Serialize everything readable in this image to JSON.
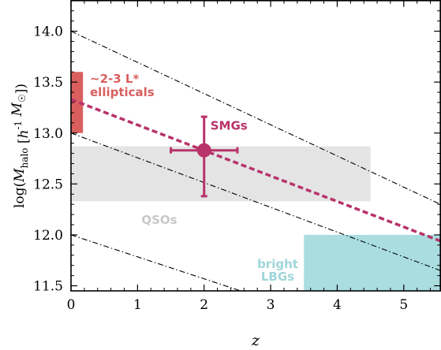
{
  "chart_data": {
    "type": "scatter",
    "title": "",
    "xlabel": "z",
    "ylabel": "log(M_halo [h^-1 M_sun])",
    "xlim": [
      0,
      5.55
    ],
    "ylim": [
      11.45,
      14.3
    ],
    "xticks": [
      0,
      1,
      2,
      3,
      4,
      5
    ],
    "yticks": [
      11.5,
      12.0,
      12.5,
      13.0,
      13.5,
      14.0
    ],
    "x_tick_labels": [
      "0",
      "1",
      "2",
      "3",
      "4",
      "5"
    ],
    "y_tick_labels": [
      "11.5",
      "12.0",
      "12.5",
      "13.0",
      "13.5",
      "14.0"
    ],
    "grid": false,
    "regions": [
      {
        "name": "~2-3 L* ellipticals",
        "label_lines": [
          "~2-3 L*",
          "ellipticals"
        ],
        "x": [
          0.0,
          0.18
        ],
        "y": [
          13.0,
          13.6
        ],
        "color": "#d95f5f",
        "label_color": "#d95f5f"
      },
      {
        "name": "QSOs",
        "label_lines": [
          "QSOs"
        ],
        "x": [
          0.0,
          4.5
        ],
        "y": [
          12.33,
          12.87
        ],
        "color": "#e4e4e4",
        "label_color": "#c8c8c8"
      },
      {
        "name": "bright LBGs",
        "label_lines": [
          "bright",
          "LBGs"
        ],
        "x": [
          3.5,
          5.55
        ],
        "y": [
          11.45,
          12.0
        ],
        "color": "#a9dde0",
        "label_color": "#9fd6da"
      }
    ],
    "dashdot_lines": [
      {
        "x": [
          0,
          5.55
        ],
        "y": [
          14.0,
          12.3
        ]
      },
      {
        "x": [
          0,
          5.55
        ],
        "y": [
          13.0,
          11.65
        ]
      },
      {
        "x": [
          0,
          2.55
        ],
        "y": [
          12.0,
          11.45
        ]
      }
    ],
    "dashed_line": {
      "x": [
        0,
        5.55
      ],
      "y": [
        13.33,
        11.94
      ],
      "color": "#b8336a"
    },
    "points": [
      {
        "name": "SMGs",
        "label": "SMGs",
        "x": 2.0,
        "y": 12.83,
        "xerr": [
          0.5,
          0.5
        ],
        "yerr": [
          0.45,
          0.33
        ],
        "color": "#b8336a"
      }
    ]
  }
}
